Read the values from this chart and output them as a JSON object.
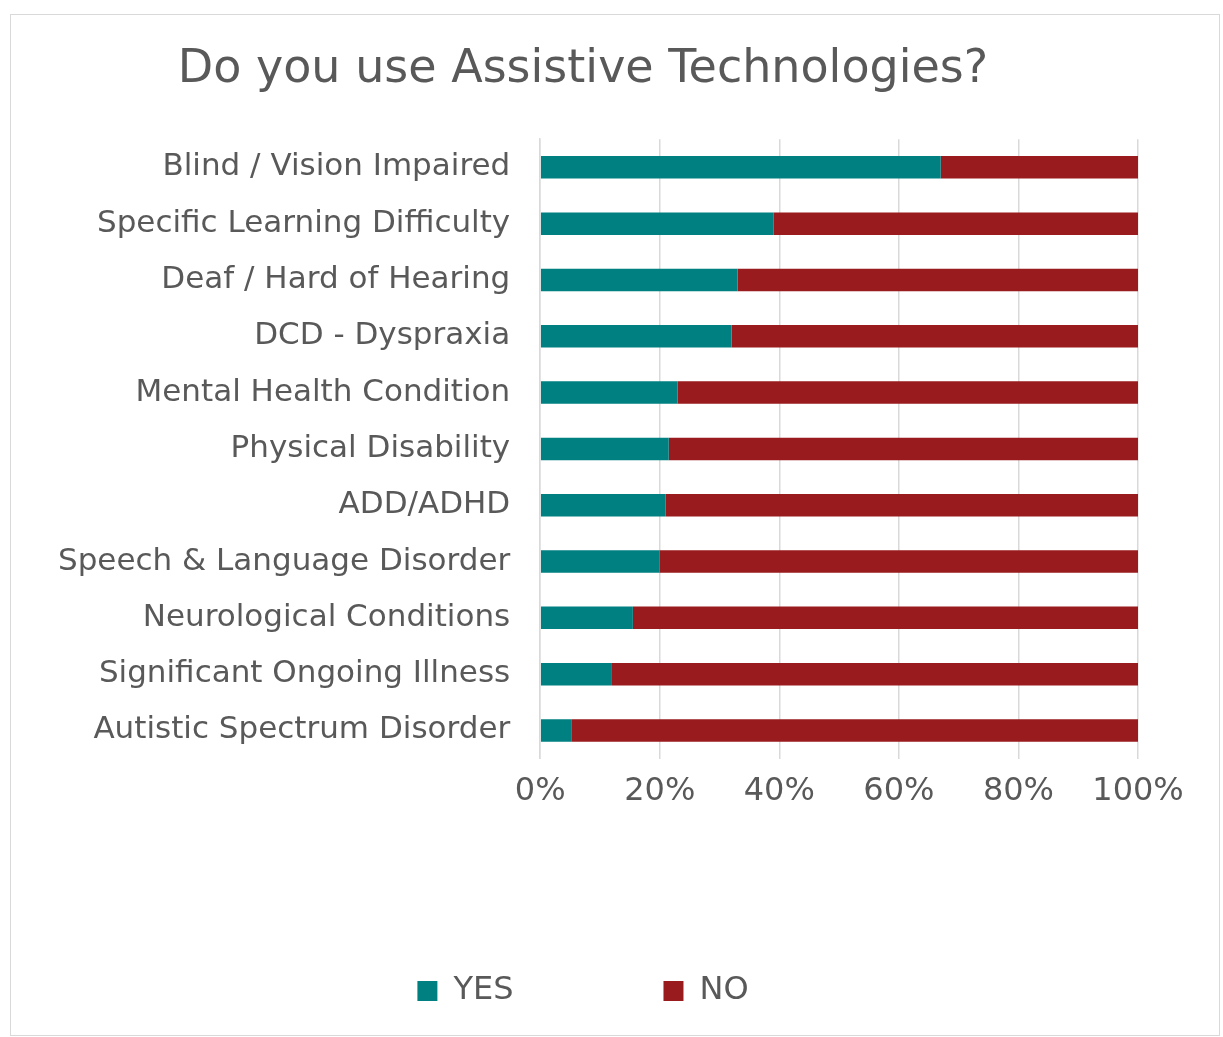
{
  "chart_data": {
    "type": "bar",
    "orientation": "horizontal",
    "stacked": true,
    "title": "Do you use Assistive Technologies?",
    "categories": [
      "Blind / Vision Impaired",
      "Specific Learning Difficulty",
      "Deaf / Hard of Hearing",
      "DCD - Dyspraxia",
      "Mental Health Condition",
      "Physical Disability",
      "ADD/ADHD",
      "Speech & Language Disorder",
      "Neurological Conditions",
      "Significant Ongoing Illness",
      "Autistic Spectrum Disorder"
    ],
    "series": [
      {
        "name": "YES",
        "color": "#008080",
        "values": [
          67,
          39,
          33,
          32,
          23,
          21.5,
          21,
          20,
          15.5,
          12,
          5.3
        ]
      },
      {
        "name": "NO",
        "color": "#991b1e",
        "values": [
          33,
          61,
          67,
          68,
          77,
          78.5,
          79,
          80,
          84.5,
          88,
          94.7
        ]
      }
    ],
    "xlim": [
      0,
      100
    ],
    "xticks": [
      {
        "value": 0,
        "label": "0%"
      },
      {
        "value": 20,
        "label": "20%"
      },
      {
        "value": 40,
        "label": "40%"
      },
      {
        "value": 60,
        "label": "60%"
      },
      {
        "value": 80,
        "label": "80%"
      },
      {
        "value": 100,
        "label": "100%"
      }
    ],
    "grid": "x",
    "legend": "bottom"
  }
}
